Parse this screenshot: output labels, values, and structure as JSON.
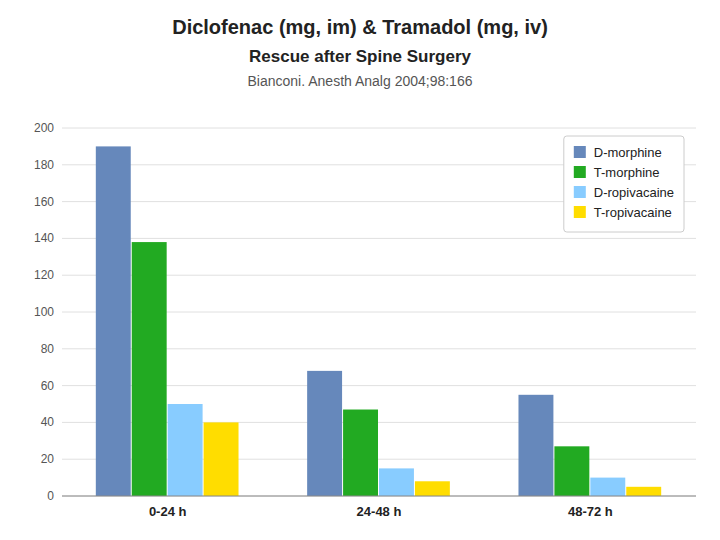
{
  "chart_data": {
    "type": "bar",
    "title": "Diclofenac (mg, im) & Tramadol (mg, iv)",
    "subtitle": "Rescue after Spine Surgery",
    "annotations": [
      "Bianconi.  Anesth Analg 2004;98:166"
    ],
    "categories": [
      "0-24 h",
      "24-48 h",
      "48-72 h"
    ],
    "series": [
      {
        "name": "D-morphine",
        "color": "#6688BB",
        "values": [
          190,
          68,
          55
        ]
      },
      {
        "name": "T-morphine",
        "color": "#22AA22",
        "values": [
          138,
          47,
          27
        ]
      },
      {
        "name": "D-ropivacaine",
        "color": "#88CCFF",
        "values": [
          50,
          15,
          10
        ]
      },
      {
        "name": "T-ropivacaine",
        "color": "#FFDD00",
        "values": [
          40,
          8,
          5
        ]
      }
    ],
    "ylim": [
      0,
      200
    ],
    "yticks": [
      0,
      20,
      40,
      60,
      80,
      100,
      120,
      140,
      160,
      180,
      200
    ],
    "grid": true,
    "legend": "upper right"
  }
}
